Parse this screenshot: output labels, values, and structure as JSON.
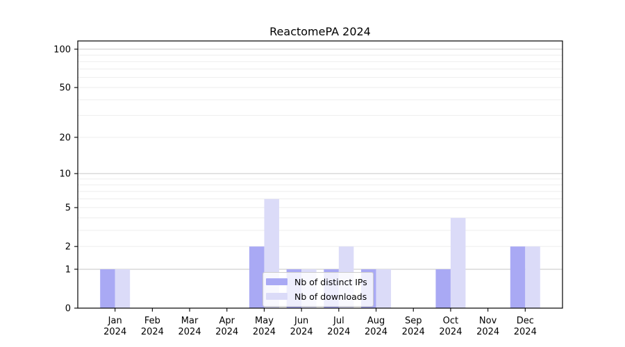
{
  "chart_data": {
    "type": "bar",
    "title": "ReactomePA 2024",
    "categories": [
      "Jan 2024",
      "Feb 2024",
      "Mar 2024",
      "Apr 2024",
      "May 2024",
      "Jun 2024",
      "Jul 2024",
      "Aug 2024",
      "Sep 2024",
      "Oct 2024",
      "Nov 2024",
      "Dec 2024"
    ],
    "series": [
      {
        "name": "Nb of distinct IPs",
        "color": "#a9a9f4",
        "values": [
          1,
          0,
          0,
          0,
          2,
          1,
          1,
          1,
          0,
          1,
          0,
          2
        ]
      },
      {
        "name": "Nb of downloads",
        "color": "#dbdbf8",
        "values": [
          1,
          0,
          0,
          0,
          6,
          1,
          2,
          1,
          0,
          4,
          0,
          2
        ]
      }
    ],
    "xlabel": "",
    "ylabel": "",
    "yscale": "log1p",
    "ylim": [
      0,
      116
    ],
    "y_ticks": [
      0,
      1,
      2,
      5,
      10,
      20,
      50,
      100
    ],
    "y_minor_gridlines": [
      2,
      3,
      4,
      5,
      6,
      7,
      8,
      9,
      20,
      30,
      40,
      50,
      60,
      70,
      80,
      90
    ],
    "y_major_gridlines": [
      1,
      10,
      100
    ],
    "grid": true,
    "legend_position": "lower center inside",
    "colors": {
      "frame": "#000000",
      "grid_major": "#c6c6c6",
      "grid_minor": "#ededed",
      "tick_text": "#000000",
      "legend_border": "#cccccc",
      "background": "#ffffff"
    }
  }
}
